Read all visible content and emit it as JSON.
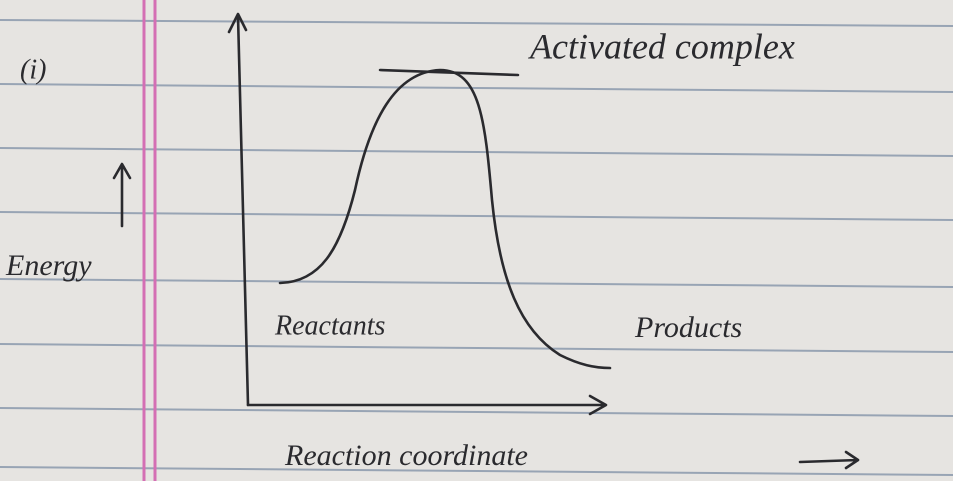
{
  "label": "(i)",
  "y_axis_label": "Energy",
  "x_axis_label": "Reaction coordinate",
  "peak_label": "Activated complex",
  "left_label": "Reactants",
  "right_label": "Products"
}
